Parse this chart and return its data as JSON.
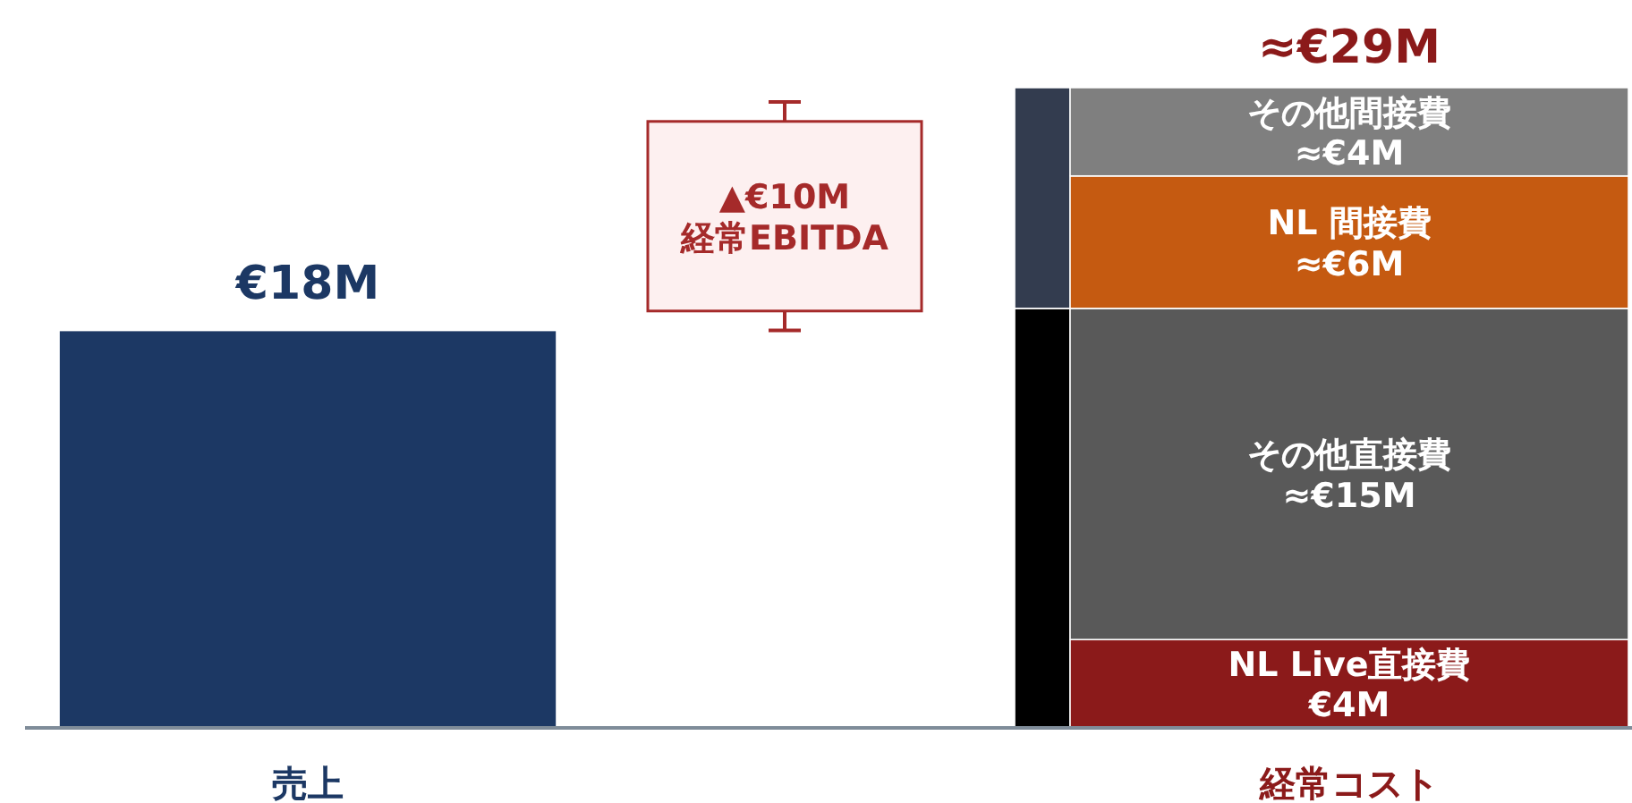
{
  "chart_data": {
    "type": "bar",
    "stacked": true,
    "categories": [
      "売上",
      null,
      null,
      "経常コスト"
    ],
    "series": [
      {
        "color": "#1c3864",
        "values": [
          18,
          null,
          null,
          null
        ],
        "value_labels": [
          "€18M",
          null,
          null,
          null
        ]
      },
      {
        "color": "#000000",
        "values": [
          null,
          null,
          19,
          null
        ]
      },
      {
        "color": "#333c4f",
        "values": [
          null,
          null,
          10,
          null
        ]
      },
      {
        "name": "NL Live直接費",
        "color": "#8b1a1a",
        "values": [
          null,
          null,
          null,
          4
        ],
        "value_labels": [
          null,
          null,
          null,
          "€4M"
        ]
      },
      {
        "name": "その他直接費",
        "color": "#595959",
        "values": [
          null,
          null,
          null,
          15
        ],
        "value_labels": [
          null,
          null,
          null,
          "≈€15M"
        ]
      },
      {
        "name": "NL 間接費",
        "color": "#c55a11",
        "values": [
          null,
          null,
          null,
          6
        ],
        "value_labels": [
          null,
          null,
          null,
          "≈€6M"
        ]
      },
      {
        "name": "その他間接費",
        "color": "#7f7f7f",
        "values": [
          null,
          null,
          null,
          4
        ],
        "value_labels": [
          null,
          null,
          null,
          "≈€4M"
        ]
      }
    ],
    "totals": [
      null,
      null,
      null,
      "≈€29M"
    ],
    "annotations": [
      "▲€10M\n経常EBITDA"
    ]
  }
}
